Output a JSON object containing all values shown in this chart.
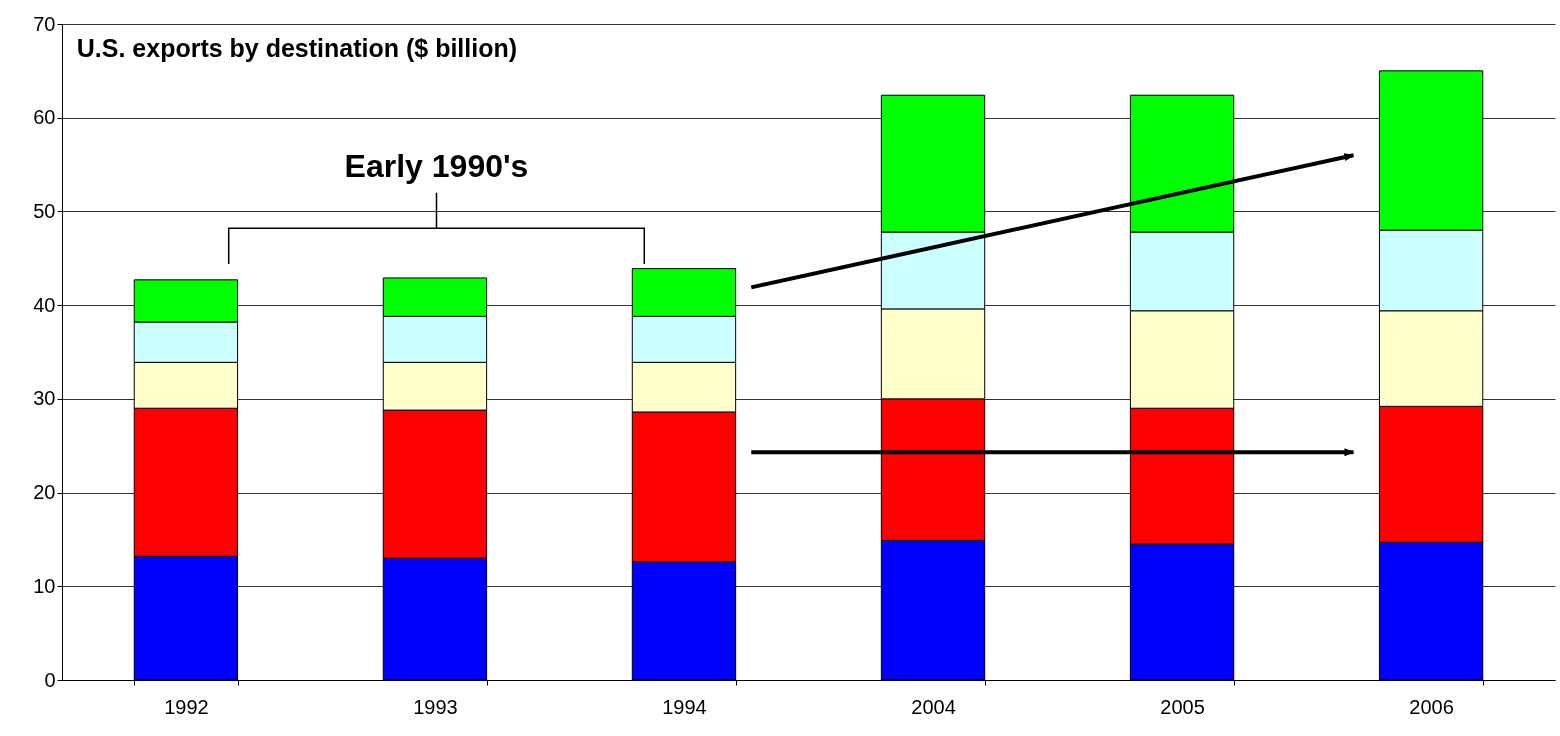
{
  "chart_data": {
    "type": "bar",
    "title": "U.S. exports by destination ($ billion)",
    "categories": [
      "1992",
      "1993",
      "1994",
      "2004",
      "2005",
      "2006"
    ],
    "stacked": true,
    "series": [
      {
        "color": "#0000ff",
        "values": [
          13.2,
          13.0,
          12.6,
          14.9,
          14.5,
          14.7
        ]
      },
      {
        "color": "#ff0000",
        "values": [
          15.8,
          15.8,
          16.0,
          15.1,
          14.5,
          14.5
        ]
      },
      {
        "color": "#ffffcc",
        "values": [
          4.9,
          5.1,
          5.3,
          9.6,
          10.4,
          10.2
        ]
      },
      {
        "color": "#ccffff",
        "values": [
          4.3,
          4.9,
          4.9,
          8.2,
          8.4,
          8.6
        ]
      },
      {
        "color": "#00ff00",
        "values": [
          4.5,
          4.1,
          5.1,
          14.6,
          14.6,
          17.0
        ]
      }
    ],
    "ylim": [
      0,
      70
    ],
    "yticks": [
      0,
      10,
      20,
      30,
      40,
      50,
      60,
      70
    ],
    "grid": "y",
    "legend": false,
    "annotations": [
      "Early 1990's"
    ]
  }
}
